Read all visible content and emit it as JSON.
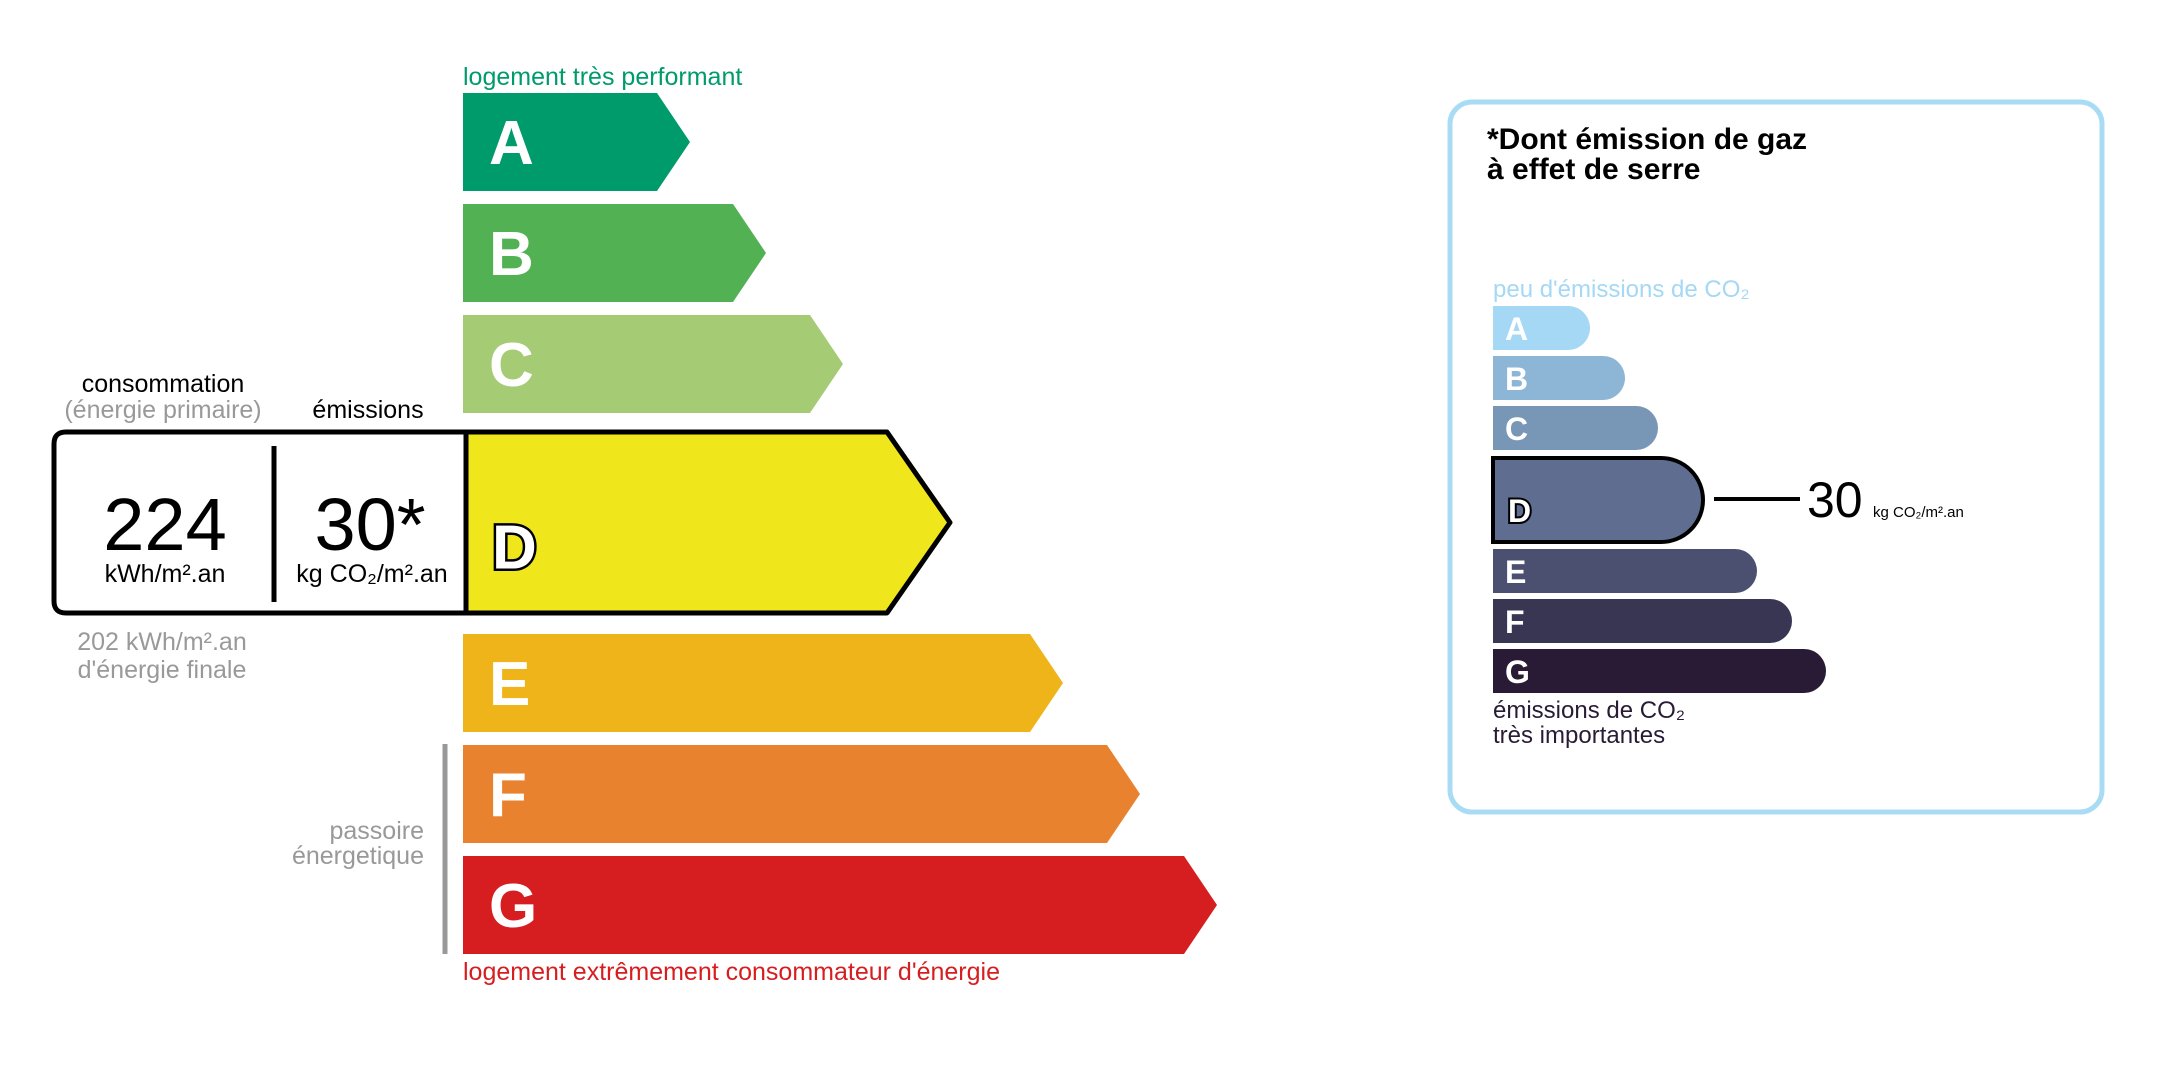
{
  "energy": {
    "top_label": "logement très performant",
    "bottom_label": "logement extrêmement consommateur d'énergie",
    "consumption_label": "consommation",
    "consumption_sublabel": "(énergie primaire)",
    "emissions_label": "émissions",
    "consumption_value": "224",
    "consumption_unit": "kWh/m².an",
    "emissions_value": "30*",
    "emissions_unit": "kg CO₂/m².an",
    "final_energy_value": "202 kWh/m².an",
    "final_energy_label": "d'énergie finale",
    "passoire_line1": "passoire",
    "passoire_line2": "énergetique",
    "current_class": "D",
    "classes": [
      {
        "letter": "A",
        "color": "#009b6a"
      },
      {
        "letter": "B",
        "color": "#52b153"
      },
      {
        "letter": "C",
        "color": "#a5cc74"
      },
      {
        "letter": "D",
        "color": "#f0e61c"
      },
      {
        "letter": "E",
        "color": "#efb41a"
      },
      {
        "letter": "F",
        "color": "#e9822f"
      },
      {
        "letter": "G",
        "color": "#d61e20"
      }
    ],
    "top_label_color": "#009b6a",
    "bottom_label_color": "#d61e20"
  },
  "ghg": {
    "title_line1": "*Dont émission de gaz",
    "title_line2": "à effet de serre",
    "top_label": "peu d'émissions de CO₂",
    "bottom_line1": "émissions de CO₂",
    "bottom_line2": "très importantes",
    "current_class": "D",
    "value": "30",
    "unit": "kg CO₂/m².an",
    "border_color": "#a8dcf5",
    "classes": [
      {
        "letter": "A",
        "color": "#a4d8f5"
      },
      {
        "letter": "B",
        "color": "#8db5d5"
      },
      {
        "letter": "C",
        "color": "#7896b5"
      },
      {
        "letter": "D",
        "color": "#5f6e90"
      },
      {
        "letter": "E",
        "color": "#4c5070"
      },
      {
        "letter": "F",
        "color": "#393654"
      },
      {
        "letter": "G",
        "color": "#291b35"
      }
    ]
  }
}
